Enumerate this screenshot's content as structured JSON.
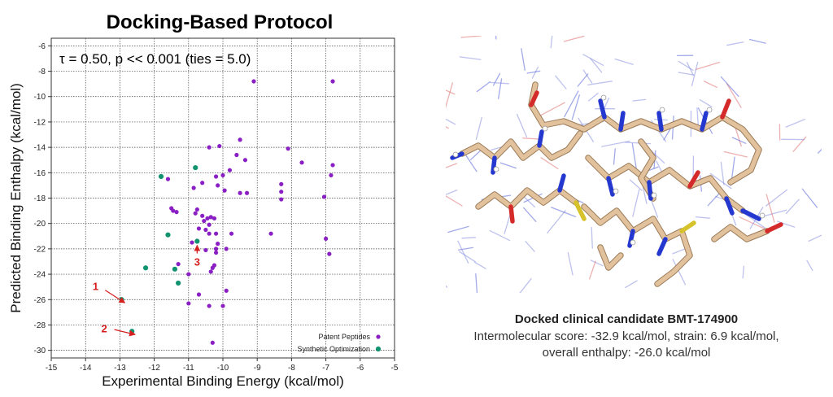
{
  "chart_data": {
    "type": "scatter",
    "title": "Docking-Based Protocol",
    "annotation": "τ = 0.50, p << 0.001 (ties = 5.0)",
    "xlabel": "Experimental Binding Energy (kcal/mol)",
    "ylabel": "Predicted Binding Enthalpy (kcal/mol)",
    "xlim": [
      -15,
      -5
    ],
    "ylim": [
      -30.6,
      -5.4
    ],
    "xticks": [
      -15,
      -14,
      -13,
      -12,
      -11,
      -10,
      -9,
      -8,
      -7,
      -6,
      -5
    ],
    "yticks": [
      -30,
      -28,
      -26,
      -24,
      -22,
      -20,
      -18,
      -16,
      -14,
      -12,
      -10,
      -8,
      -6
    ],
    "grid": true,
    "legend_position": "bottom-right",
    "series": [
      {
        "name": "Patent Peptides",
        "color": "#8a1fc4",
        "points": [
          [
            -9.1,
            -8.8
          ],
          [
            -6.8,
            -8.8
          ],
          [
            -10.4,
            -14.0
          ],
          [
            -10.1,
            -13.9
          ],
          [
            -9.5,
            -13.4
          ],
          [
            -9.6,
            -14.6
          ],
          [
            -8.1,
            -14.1
          ],
          [
            -9.35,
            -15.0
          ],
          [
            -7.7,
            -15.2
          ],
          [
            -6.8,
            -15.4
          ],
          [
            -11.6,
            -16.5
          ],
          [
            -10.2,
            -16.3
          ],
          [
            -10.0,
            -16.2
          ],
          [
            -9.8,
            -15.8
          ],
          [
            -6.85,
            -16.2
          ],
          [
            -10.6,
            -16.8
          ],
          [
            -10.15,
            -17.0
          ],
          [
            -8.3,
            -16.9
          ],
          [
            -10.85,
            -17.2
          ],
          [
            -9.95,
            -17.4
          ],
          [
            -8.3,
            -17.5
          ],
          [
            -9.5,
            -17.6
          ],
          [
            -9.3,
            -17.6
          ],
          [
            -7.05,
            -17.9
          ],
          [
            -8.3,
            -18.1
          ],
          [
            -11.5,
            -18.8
          ],
          [
            -11.45,
            -19.0
          ],
          [
            -11.35,
            -19.1
          ],
          [
            -10.75,
            -18.9
          ],
          [
            -10.8,
            -19.2
          ],
          [
            -10.6,
            -19.4
          ],
          [
            -10.45,
            -19.6
          ],
          [
            -10.35,
            -19.5
          ],
          [
            -10.25,
            -19.6
          ],
          [
            -10.55,
            -19.8
          ],
          [
            -10.4,
            -20.1
          ],
          [
            -10.7,
            -20.4
          ],
          [
            -10.5,
            -20.5
          ],
          [
            -10.4,
            -20.8
          ],
          [
            -10.2,
            -20.8
          ],
          [
            -9.75,
            -20.8
          ],
          [
            -8.6,
            -20.8
          ],
          [
            -7.0,
            -21.2
          ],
          [
            -10.9,
            -21.5
          ],
          [
            -10.15,
            -21.6
          ],
          [
            -10.2,
            -22.0
          ],
          [
            -10.5,
            -22.1
          ],
          [
            -10.2,
            -22.3
          ],
          [
            -9.9,
            -22.0
          ],
          [
            -6.9,
            -22.4
          ],
          [
            -11.3,
            -23.2
          ],
          [
            -10.25,
            -23.3
          ],
          [
            -10.3,
            -23.5
          ],
          [
            -10.35,
            -23.8
          ],
          [
            -11.0,
            -24.0
          ],
          [
            -9.9,
            -25.3
          ],
          [
            -10.7,
            -25.6
          ],
          [
            -11.0,
            -26.3
          ],
          [
            -10.4,
            -26.5
          ],
          [
            -10.0,
            -26.5
          ],
          [
            -10.3,
            -29.4
          ]
        ]
      },
      {
        "name": "Synthetic Optimization",
        "color": "#119370",
        "points": [
          [
            -11.8,
            -16.3
          ],
          [
            -10.8,
            -15.6
          ],
          [
            -11.6,
            -20.9
          ],
          [
            -10.75,
            -21.4
          ],
          [
            -12.25,
            -23.5
          ],
          [
            -11.4,
            -23.6
          ],
          [
            -11.3,
            -24.7
          ],
          [
            -12.95,
            -26.0
          ],
          [
            -12.65,
            -28.5
          ]
        ]
      }
    ],
    "annotations": [
      {
        "label": "1",
        "x": -12.95,
        "y": -26.0
      },
      {
        "label": "2",
        "x": -12.65,
        "y": -28.5
      },
      {
        "label": "3",
        "x": -10.75,
        "y": -21.4
      }
    ]
  },
  "molecule": {
    "title": "Docked clinical candidate BMT-174900",
    "line1": "Intermolecular score: -32.9 kcal/mol, strain: 6.9 kcal/mol,",
    "line2": "overall enthalpy: -26.0 kcal/mol",
    "colors": {
      "carbon": "#e2c29c",
      "nitrogen": "#2438d0",
      "oxygen": "#d42a2a",
      "sulfur": "#d6c22a",
      "hydrogen": "#ffffff",
      "protein": "#8890e0"
    }
  }
}
